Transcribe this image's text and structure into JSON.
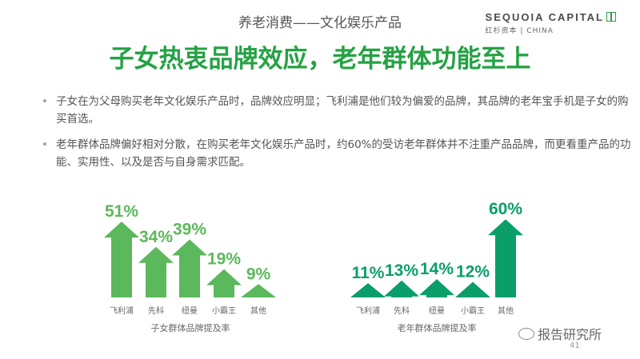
{
  "header": {
    "topic": "养老消费——文化娱乐产品",
    "logo_main": "SEQUOIA CAPITAL",
    "logo_sub": "红杉资本 | CHINA"
  },
  "headline": "子女热衷品牌效应，老年群体功能至上",
  "bullets": [
    "子女在为父母购买老年文化娱乐产品时，品牌效应明显；飞利浦是他们较为偏爱的品牌，其品牌的老年宝手机是子女的购买首选。",
    "老年群体品牌偏好相对分散，在购买老年文化娱乐产品时，约60%的受访老年群体并不注重产品品牌，而更看重产品的功能、实用性、以及是否与自身需求匹配。"
  ],
  "colors": {
    "chart1": "#5cb85c",
    "chart2": "#0a9e6a",
    "headline": "#25a244"
  },
  "chart_data": [
    {
      "type": "bar",
      "xlabel": "子女群体品牌提及率",
      "categories": [
        "飞利浦",
        "先科",
        "纽曼",
        "小霸王",
        "其他"
      ],
      "values": [
        51,
        34,
        39,
        19,
        9
      ],
      "labels": [
        "51%",
        "34%",
        "39%",
        "19%",
        "9%"
      ]
    },
    {
      "type": "bar",
      "xlabel": "老年群体品牌提及率",
      "categories": [
        "飞利浦",
        "先科",
        "纽曼",
        "小霸王",
        "其他"
      ],
      "values": [
        11,
        13,
        14,
        12,
        60
      ],
      "labels": [
        "11%",
        "13%",
        "14%",
        "12%",
        "60%"
      ]
    }
  ],
  "footer": {
    "brand": "报告研究所",
    "page": "41"
  }
}
